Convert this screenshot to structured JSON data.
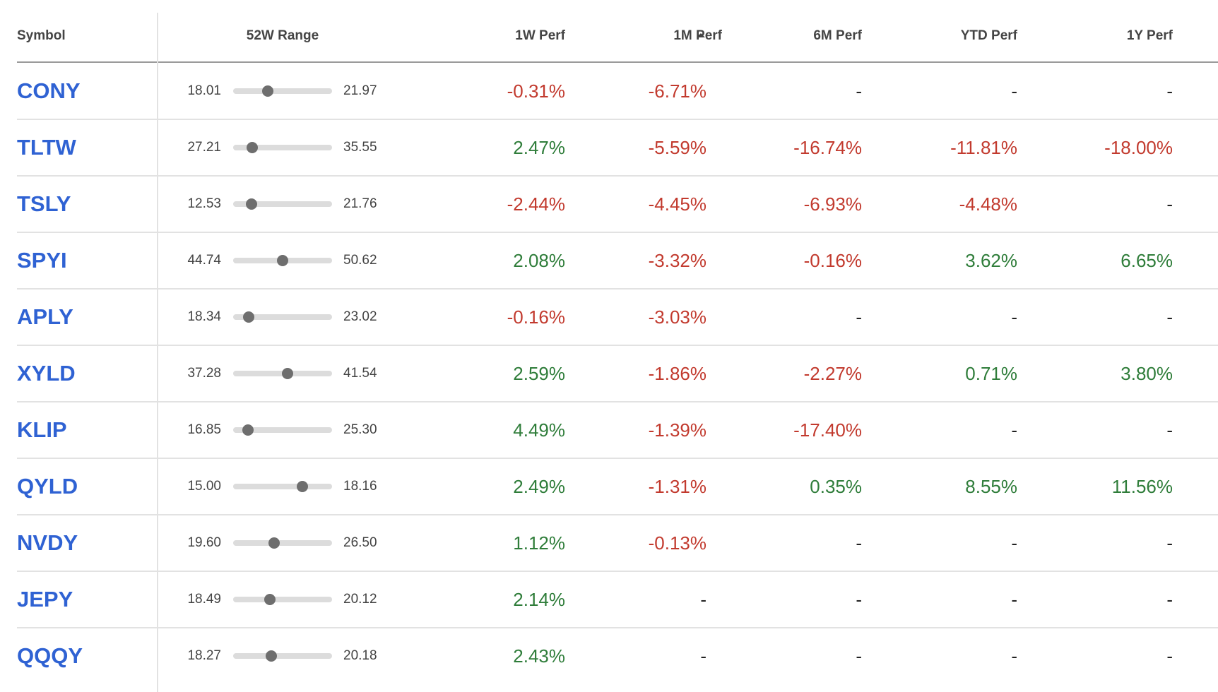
{
  "table": {
    "headers": [
      "Symbol",
      "52W Range",
      "1W Perf",
      "1M Perf",
      "6M Perf",
      "YTD Perf",
      "1Y Perf"
    ],
    "rows": [
      {
        "symbol": "CONY",
        "low": "18.01",
        "high": "21.97",
        "price": 19.41,
        "perf": [
          "-0.31%",
          "-6.71%",
          "-",
          "-",
          "-"
        ]
      },
      {
        "symbol": "TLTW",
        "low": "27.21",
        "high": "35.55",
        "price": 28.84,
        "perf": [
          "2.47%",
          "-5.59%",
          "-16.74%",
          "-11.81%",
          "-18.00%"
        ]
      },
      {
        "symbol": "TSLY",
        "low": "12.53",
        "high": "21.76",
        "price": 14.26,
        "perf": [
          "-2.44%",
          "-4.45%",
          "-6.93%",
          "-4.48%",
          "-"
        ]
      },
      {
        "symbol": "SPYI",
        "low": "44.74",
        "high": "50.62",
        "price": 47.66,
        "perf": [
          "2.08%",
          "-3.32%",
          "-0.16%",
          "3.62%",
          "6.65%"
        ]
      },
      {
        "symbol": "APLY",
        "low": "18.34",
        "high": "23.02",
        "price": 19.07,
        "perf": [
          "-0.16%",
          "-3.03%",
          "-",
          "-",
          "-"
        ]
      },
      {
        "symbol": "XYLD",
        "low": "37.28",
        "high": "41.54",
        "price": 39.63,
        "perf": [
          "2.59%",
          "-1.86%",
          "-2.27%",
          "0.71%",
          "3.80%"
        ]
      },
      {
        "symbol": "KLIP",
        "low": "16.85",
        "high": "25.30",
        "price": 18.1,
        "perf": [
          "4.49%",
          "-1.39%",
          "-17.40%",
          "-",
          "-"
        ]
      },
      {
        "symbol": "QYLD",
        "low": "15.00",
        "high": "18.16",
        "price": 17.21,
        "perf": [
          "2.49%",
          "-1.31%",
          "0.35%",
          "8.55%",
          "11.56%"
        ]
      },
      {
        "symbol": "NVDY",
        "low": "19.60",
        "high": "26.50",
        "price": 22.46,
        "perf": [
          "1.12%",
          "-0.13%",
          "-",
          "-",
          "-"
        ]
      },
      {
        "symbol": "JEPY",
        "low": "18.49",
        "high": "20.12",
        "price": 19.09,
        "perf": [
          "2.14%",
          "-",
          "-",
          "-",
          "-"
        ]
      },
      {
        "symbol": "QQQY",
        "low": "18.27",
        "high": "20.18",
        "price": 19.01,
        "perf": [
          "2.43%",
          "-",
          "-",
          "-",
          "-"
        ]
      }
    ],
    "sort_column": 3,
    "colors": {
      "symbol": "#2f62d3",
      "up": "#2f7d3a",
      "down": "#c23a2e",
      "none": "#222222"
    }
  }
}
